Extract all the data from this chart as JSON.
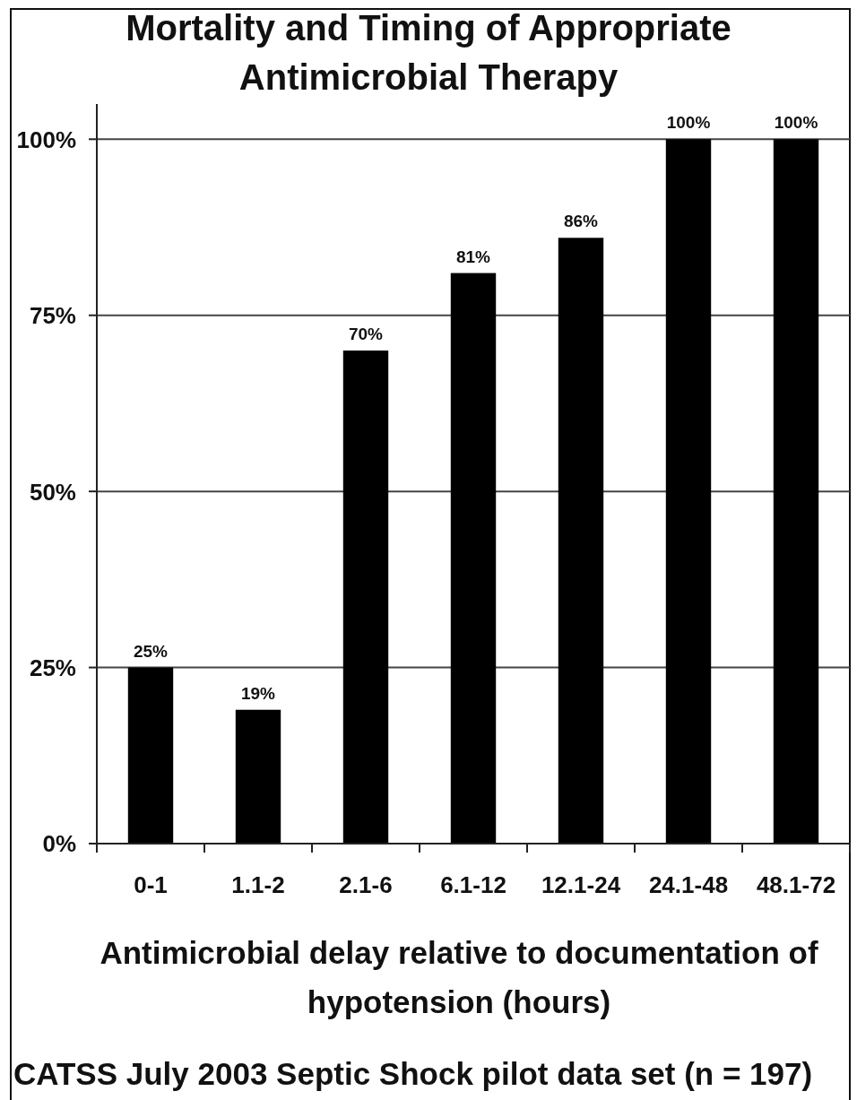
{
  "chart_data": {
    "type": "bar",
    "title": "Mortality and Timing of Appropriate Antimicrobial Therapy",
    "xlabel": "Antimicrobial delay relative to documentation of hypotension (hours)",
    "annotations": [
      "CATSS July 2003 Septic Shock pilot data set (n = 197)"
    ],
    "categories": [
      "0-1",
      "1.1-2",
      "2.1-6",
      "6.1-12",
      "12.1-24",
      "24.1-48",
      "48.1-72"
    ],
    "values": [
      25,
      19,
      70,
      81,
      86,
      100,
      100
    ],
    "value_labels": [
      "25%",
      "19%",
      "70%",
      "81%",
      "86%",
      "100%",
      "100%"
    ],
    "color": "#000000",
    "ylim": [
      0,
      105
    ],
    "yticks": [
      {
        "value": 0,
        "label": "0%"
      },
      {
        "value": 25,
        "label": "25%"
      },
      {
        "value": 50,
        "label": "50%"
      },
      {
        "value": 75,
        "label": "75%"
      },
      {
        "value": 100,
        "label": "100%"
      }
    ],
    "grid": "y"
  }
}
